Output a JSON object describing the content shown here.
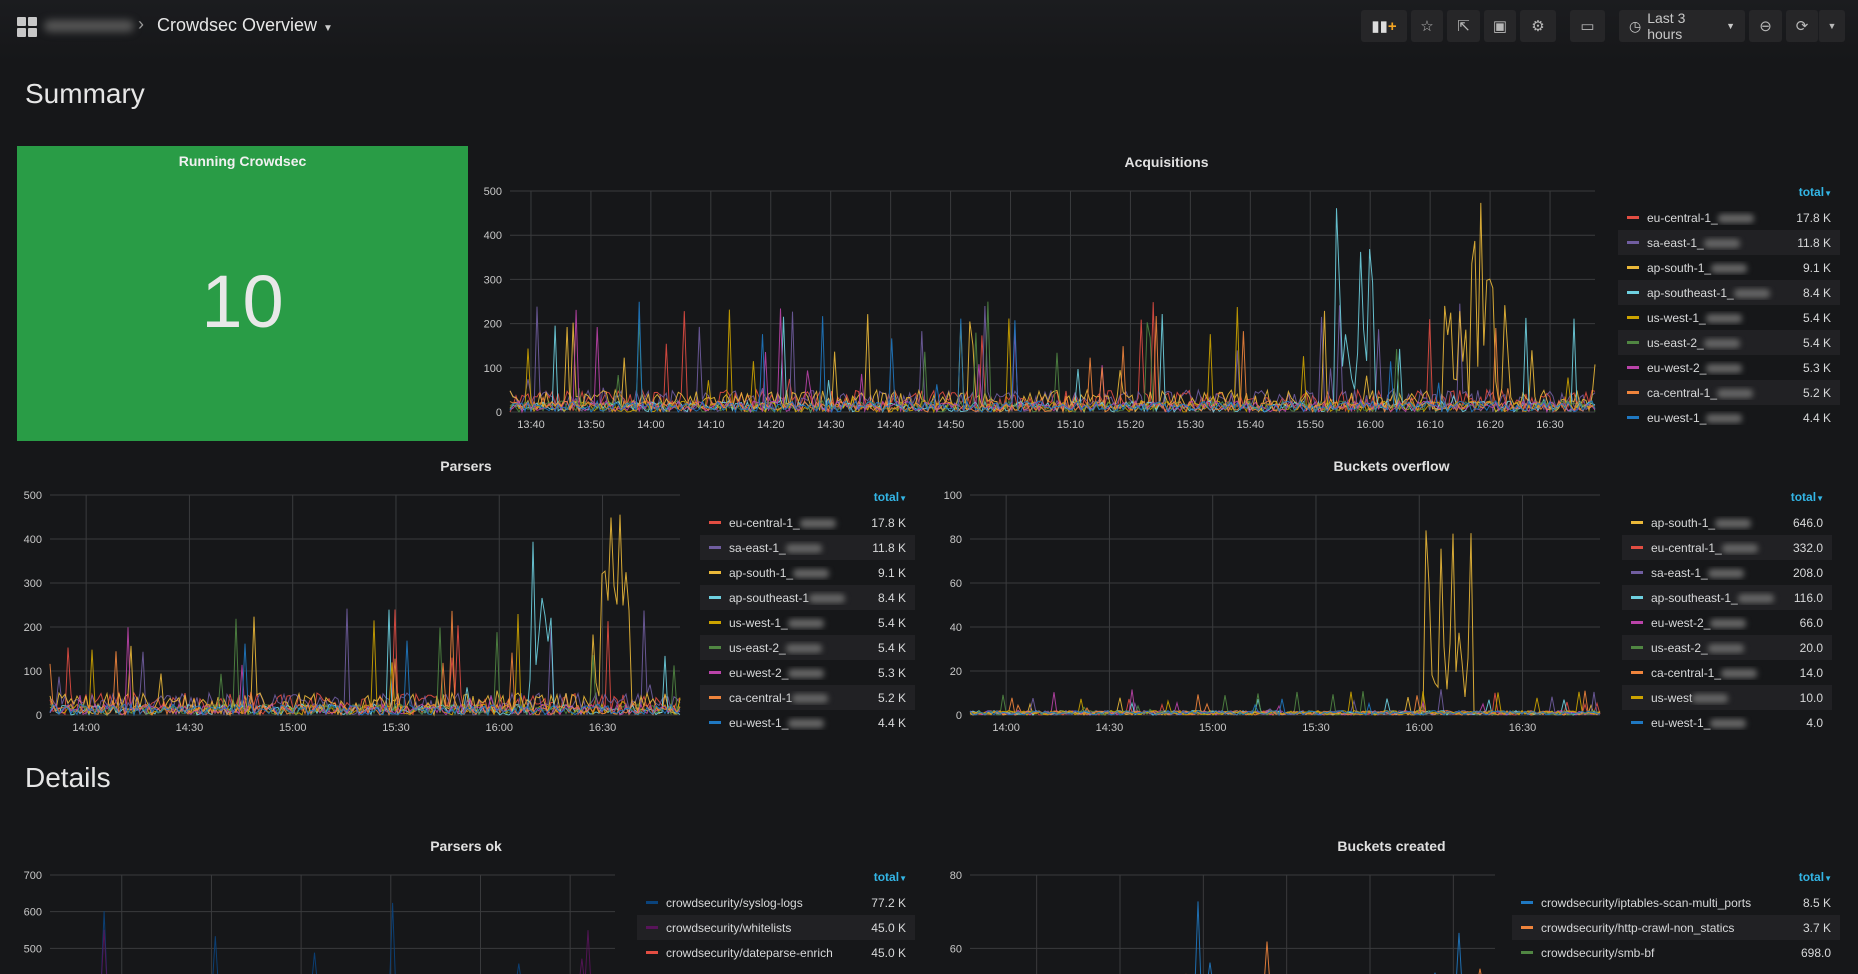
{
  "header": {
    "title": "Crowdsec Overview",
    "time_range": "Last 3 hours"
  },
  "toolbar": {
    "icons": [
      "add-panel-icon",
      "star-icon",
      "share-icon",
      "save-icon",
      "gear-icon",
      "tv-icon",
      "clock-icon",
      "zoom-out-icon",
      "refresh-icon",
      "caret-down-icon"
    ]
  },
  "rows": {
    "summary": "Summary",
    "details": "Details"
  },
  "running": {
    "title": "Running Crowdsec",
    "value": "10",
    "color": "#299c46"
  },
  "panels": [
    {
      "id": "acquisitions",
      "title": "Acquisitions",
      "yticks": [
        "0",
        "100",
        "200",
        "300",
        "400",
        "500"
      ],
      "ymax": 500,
      "xticks": [
        "13:40",
        "13:50",
        "14:00",
        "14:10",
        "14:20",
        "14:30",
        "14:40",
        "14:50",
        "15:00",
        "15:10",
        "15:20",
        "15:30",
        "15:40",
        "15:50",
        "16:00",
        "16:10",
        "16:20",
        "16:30"
      ],
      "legend_header": "total",
      "legend": [
        {
          "name": "eu-central-1_",
          "value": "17.8 K",
          "color": "#e24d42"
        },
        {
          "name": "sa-east-1_",
          "value": "11.8 K",
          "color": "#705da0"
        },
        {
          "name": "ap-south-1_",
          "value": "9.1 K",
          "color": "#eab839"
        },
        {
          "name": "ap-southeast-1_",
          "value": "8.4 K",
          "color": "#6ed0e0"
        },
        {
          "name": "us-west-1_",
          "value": "5.4 K",
          "color": "#cca300"
        },
        {
          "name": "us-east-2_",
          "value": "5.4 K",
          "color": "#508642"
        },
        {
          "name": "eu-west-2_",
          "value": "5.3 K",
          "color": "#ba43a9"
        },
        {
          "name": "ca-central-1_",
          "value": "5.2 K",
          "color": "#ef843c"
        },
        {
          "name": "eu-west-1_",
          "value": "4.4 K",
          "color": "#1f78c1"
        }
      ]
    },
    {
      "id": "parsers",
      "title": "Parsers",
      "yticks": [
        "0",
        "100",
        "200",
        "300",
        "400",
        "500"
      ],
      "ymax": 500,
      "xticks": [
        "14:00",
        "14:30",
        "15:00",
        "15:30",
        "16:00",
        "16:30"
      ],
      "legend_header": "total",
      "legend": [
        {
          "name": "eu-central-1_",
          "value": "17.8 K",
          "color": "#e24d42"
        },
        {
          "name": "sa-east-1_",
          "value": "11.8 K",
          "color": "#705da0"
        },
        {
          "name": "ap-south-1_",
          "value": "9.1 K",
          "color": "#eab839"
        },
        {
          "name": "ap-southeast-1",
          "value": "8.4 K",
          "color": "#6ed0e0"
        },
        {
          "name": "us-west-1_",
          "value": "5.4 K",
          "color": "#cca300"
        },
        {
          "name": "us-east-2_",
          "value": "5.4 K",
          "color": "#508642"
        },
        {
          "name": "eu-west-2_",
          "value": "5.3 K",
          "color": "#ba43a9"
        },
        {
          "name": "ca-central-1",
          "value": "5.2 K",
          "color": "#ef843c"
        },
        {
          "name": "eu-west-1_",
          "value": "4.4 K",
          "color": "#1f78c1"
        }
      ]
    },
    {
      "id": "buckets-overflow",
      "title": "Buckets overflow",
      "yticks": [
        "0",
        "20",
        "40",
        "60",
        "80",
        "100"
      ],
      "ymax": 100,
      "xticks": [
        "14:00",
        "14:30",
        "15:00",
        "15:30",
        "16:00",
        "16:30"
      ],
      "legend_header": "total",
      "legend": [
        {
          "name": "ap-south-1_",
          "value": "646.0",
          "color": "#eab839"
        },
        {
          "name": "eu-central-1_",
          "value": "332.0",
          "color": "#e24d42"
        },
        {
          "name": "sa-east-1_",
          "value": "208.0",
          "color": "#705da0"
        },
        {
          "name": "ap-southeast-1_",
          "value": "116.0",
          "color": "#6ed0e0"
        },
        {
          "name": "eu-west-2_",
          "value": "66.0",
          "color": "#ba43a9"
        },
        {
          "name": "us-east-2_",
          "value": "20.0",
          "color": "#508642"
        },
        {
          "name": "ca-central-1_",
          "value": "14.0",
          "color": "#ef843c"
        },
        {
          "name": "us-west",
          "value": "10.0",
          "color": "#cca300"
        },
        {
          "name": "eu-west-1_",
          "value": "4.0",
          "color": "#1f78c1"
        }
      ]
    },
    {
      "id": "parsers-ok",
      "title": "Parsers ok",
      "yticks": [
        "500",
        "600",
        "700"
      ],
      "ymax": 700,
      "ymin": 400,
      "xticks": [],
      "legend_header": "total",
      "legend": [
        {
          "name": "crowdsecurity/syslog-logs",
          "value": "77.2 K",
          "color": "#0a437c"
        },
        {
          "name": "crowdsecurity/whitelists",
          "value": "45.0 K",
          "color": "#58145a"
        },
        {
          "name": "crowdsecurity/dateparse-enrich",
          "value": "45.0 K",
          "color": "#e24d42"
        }
      ]
    },
    {
      "id": "buckets-created",
      "title": "Buckets created",
      "yticks": [
        "60",
        "80"
      ],
      "ymax": 80,
      "ymin": 50,
      "xticks": [],
      "legend_header": "total",
      "legend": [
        {
          "name": "crowdsecurity/iptables-scan-multi_ports",
          "value": "8.5 K",
          "color": "#1f78c1"
        },
        {
          "name": "crowdsecurity/http-crawl-non_statics",
          "value": "3.7 K",
          "color": "#ef843c"
        },
        {
          "name": "crowdsecurity/smb-bf",
          "value": "698.0",
          "color": "#508642"
        }
      ]
    }
  ]
}
